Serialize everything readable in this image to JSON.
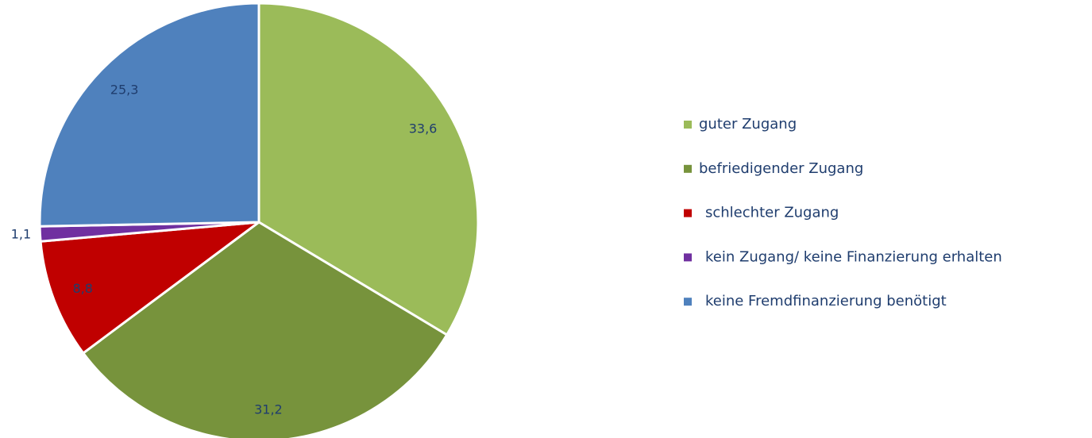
{
  "chart_data": {
    "type": "pie",
    "categories": [
      "guter Zugang",
      "befriedigender Zugang",
      "schlechter Zugang",
      "kein Zugang/ keine Finanzierung erhalten",
      "keine Fremdfinanzierung benötigt"
    ],
    "values": [
      33.6,
      31.2,
      8.8,
      1.1,
      25.3
    ],
    "value_labels": [
      "33,6",
      "31,2",
      "8,8",
      "1,1",
      "25,3"
    ],
    "colors": [
      "#9bbb59",
      "#77933c",
      "#c00000",
      "#7030a0",
      "#4f81bd"
    ],
    "legend": "right"
  }
}
